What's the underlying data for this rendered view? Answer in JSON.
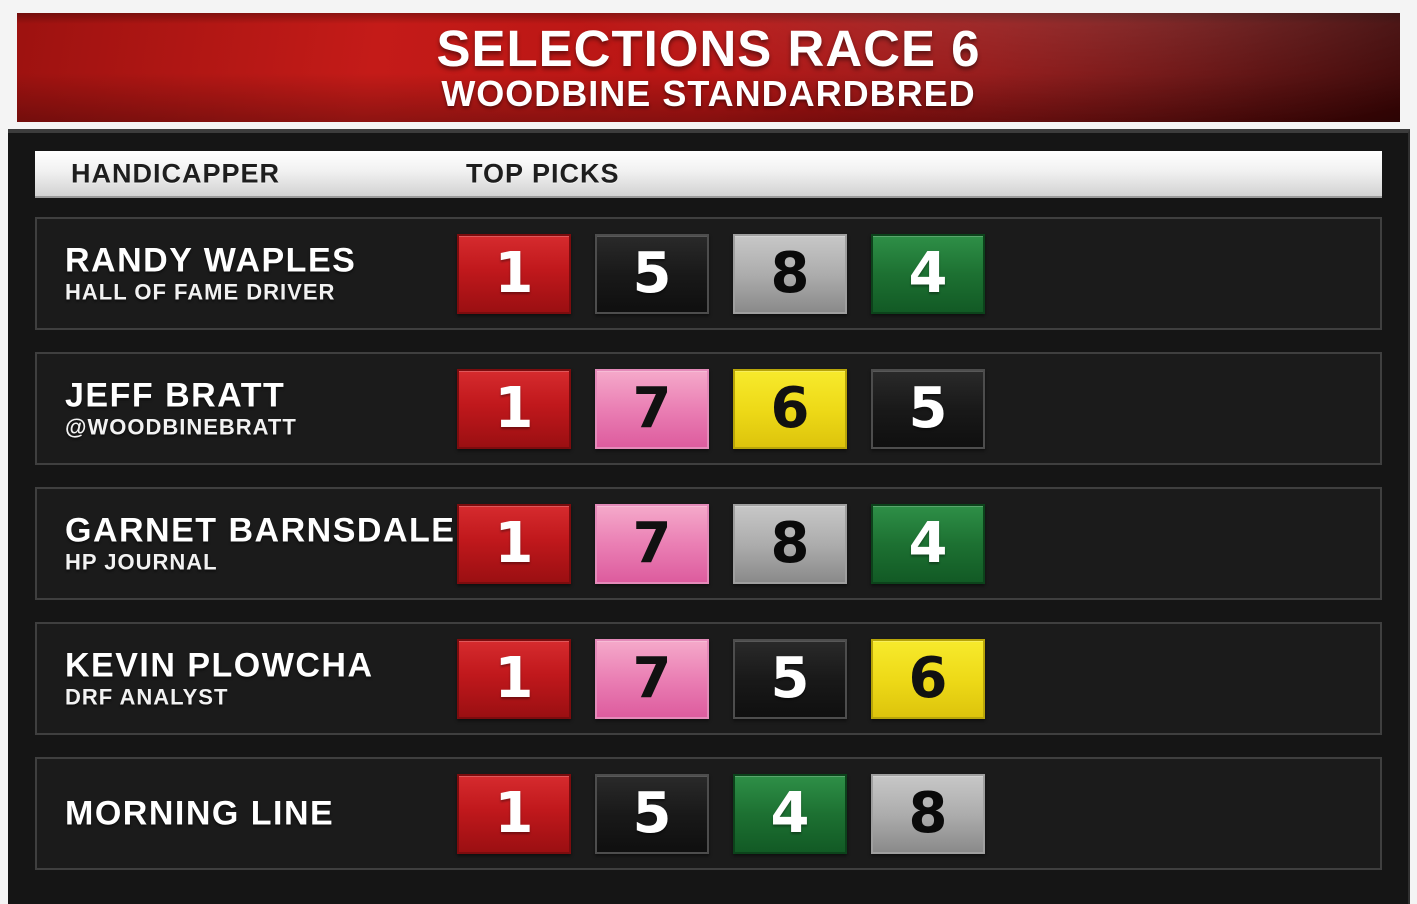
{
  "banner": {
    "title": "SELECTIONS RACE 6",
    "subtitle": "WOODBINE STANDARDBRED"
  },
  "table": {
    "header": {
      "handicapper": "HANDICAPPER",
      "top_picks": "TOP PICKS"
    },
    "rows": [
      {
        "name": "RANDY WAPLES",
        "subtitle": "HALL OF FAME DRIVER",
        "picks": [
          {
            "number": "1",
            "color": "red"
          },
          {
            "number": "5",
            "color": "black"
          },
          {
            "number": "8",
            "color": "grey"
          },
          {
            "number": "4",
            "color": "green"
          }
        ]
      },
      {
        "name": "JEFF BRATT",
        "subtitle": "@WOODBINEBRATT",
        "picks": [
          {
            "number": "1",
            "color": "red"
          },
          {
            "number": "7",
            "color": "pink"
          },
          {
            "number": "6",
            "color": "yellow"
          },
          {
            "number": "5",
            "color": "black"
          }
        ]
      },
      {
        "name": "GARNET BARNSDALE",
        "subtitle": "HP JOURNAL",
        "picks": [
          {
            "number": "1",
            "color": "red"
          },
          {
            "number": "7",
            "color": "pink"
          },
          {
            "number": "8",
            "color": "grey"
          },
          {
            "number": "4",
            "color": "green"
          }
        ]
      },
      {
        "name": "KEVIN PLOWCHA",
        "subtitle": "DRF ANALYST",
        "picks": [
          {
            "number": "1",
            "color": "red"
          },
          {
            "number": "7",
            "color": "pink"
          },
          {
            "number": "5",
            "color": "black"
          },
          {
            "number": "6",
            "color": "yellow"
          }
        ]
      },
      {
        "name": "MORNING LINE",
        "subtitle": "",
        "picks": [
          {
            "number": "1",
            "color": "red"
          },
          {
            "number": "5",
            "color": "black"
          },
          {
            "number": "4",
            "color": "green"
          },
          {
            "number": "8",
            "color": "grey"
          }
        ]
      }
    ]
  },
  "colors": {
    "banner_red": "#b81514",
    "panel_bg": "#151515",
    "row_bg": "#1b1b1b",
    "saddlecloth": {
      "1_red": "#b81518",
      "4_green": "#1d7132",
      "5_black": "#191919",
      "6_yellow": "#eeda18",
      "7_pink": "#ea7fb4",
      "8_grey": "#adadad"
    }
  }
}
